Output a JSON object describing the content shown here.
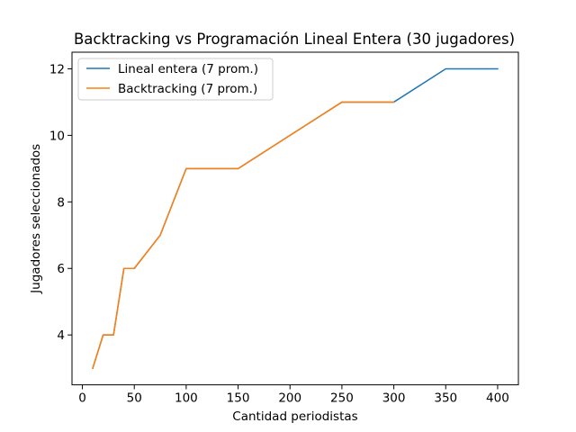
{
  "chart_data": {
    "type": "line",
    "title": "Backtracking vs Programación Lineal Entera (30 jugadores)",
    "xlabel": "Cantidad periodistas",
    "ylabel": "Jugadores seleccionados",
    "xlim": [
      -10,
      420
    ],
    "ylim": [
      2.5,
      12.5
    ],
    "xticks": [
      0,
      50,
      100,
      150,
      200,
      250,
      300,
      350,
      400
    ],
    "yticks": [
      4,
      6,
      8,
      10,
      12
    ],
    "grid": false,
    "legend_position": "top-left",
    "series": [
      {
        "name": "Lineal entera  (7 prom.)",
        "color": "#1f77b4",
        "x": [
          10,
          20,
          30,
          40,
          50,
          75,
          100,
          150,
          200,
          250,
          300,
          350,
          400
        ],
        "y": [
          3,
          4,
          4,
          6,
          6,
          7,
          9,
          9,
          10,
          11,
          11,
          12,
          12
        ]
      },
      {
        "name": "Backtracking (7 prom.)",
        "color": "#ff7f0e",
        "x": [
          10,
          20,
          30,
          40,
          50,
          75,
          100,
          150,
          200,
          250,
          300
        ],
        "y": [
          3,
          4,
          4,
          6,
          6,
          7,
          9,
          9,
          10,
          11,
          11
        ]
      }
    ]
  }
}
